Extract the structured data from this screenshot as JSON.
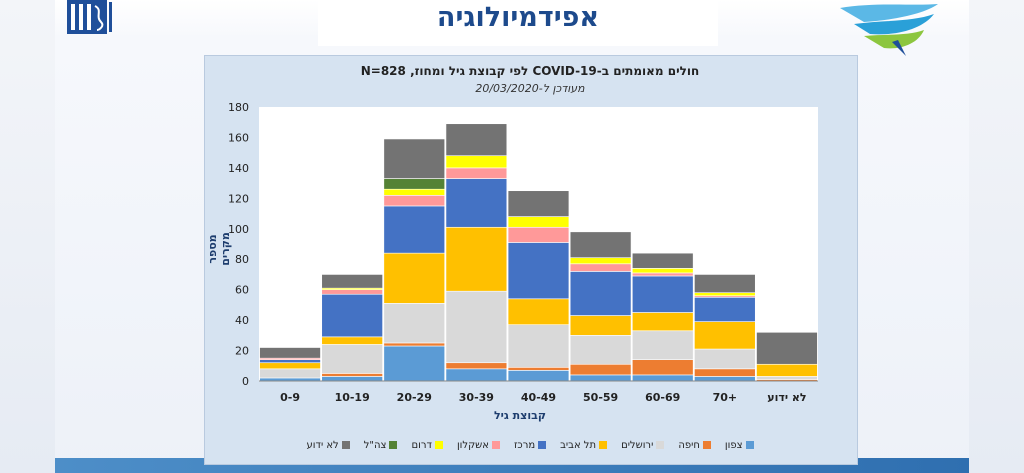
{
  "slide": {
    "title": "אפידמיולוגיה"
  },
  "chart_data": {
    "type": "bar",
    "stacked": true,
    "title": "חולים מאומתים ב-COVID-19 לפי קבוצת גיל ומחוז, N=828",
    "subtitle": "מעודכן ל-20/03/2020",
    "xlabel": "קבוצת גיל",
    "ylabel": "מספר מקרים",
    "ylim": [
      0,
      180
    ],
    "yticks": [
      0,
      20,
      40,
      60,
      80,
      100,
      120,
      140,
      160,
      180
    ],
    "grid": false,
    "legend_position": "bottom",
    "categories": [
      "0-9",
      "10-19",
      "20-29",
      "30-39",
      "40-49",
      "50-59",
      "60-69",
      "+70",
      "לא ידוע"
    ],
    "series": [
      {
        "name": "צפון",
        "color": "#5b9bd5",
        "values": [
          2,
          3,
          23,
          8,
          7,
          4,
          4,
          3,
          0
        ]
      },
      {
        "name": "חיפה",
        "color": "#ed7d31",
        "values": [
          0,
          2,
          2,
          4,
          2,
          7,
          10,
          5,
          1
        ]
      },
      {
        "name": "ירושלים",
        "color": "#d9d9d9",
        "values": [
          6,
          19,
          26,
          47,
          28,
          19,
          19,
          13,
          2
        ]
      },
      {
        "name": "תל אביב",
        "color": "#ffc000",
        "values": [
          4,
          5,
          33,
          42,
          17,
          13,
          12,
          18,
          8
        ]
      },
      {
        "name": "מרכז",
        "color": "#4472c4",
        "values": [
          2,
          28,
          31,
          32,
          37,
          29,
          24,
          16,
          0
        ]
      },
      {
        "name": "אשקלון",
        "color": "#ff9999",
        "values": [
          1,
          3,
          7,
          7,
          10,
          5,
          2,
          1,
          0
        ]
      },
      {
        "name": "דרום",
        "color": "#ffff00",
        "values": [
          0,
          1,
          4,
          8,
          7,
          4,
          3,
          2,
          0
        ]
      },
      {
        "name": "צה\"ל",
        "color": "#548235",
        "values": [
          0,
          0,
          7,
          0,
          0,
          0,
          0,
          0,
          0
        ]
      },
      {
        "name": "לא ידוע",
        "color": "#737373",
        "values": [
          7,
          9,
          26,
          21,
          17,
          17,
          10,
          12,
          21
        ]
      }
    ]
  }
}
